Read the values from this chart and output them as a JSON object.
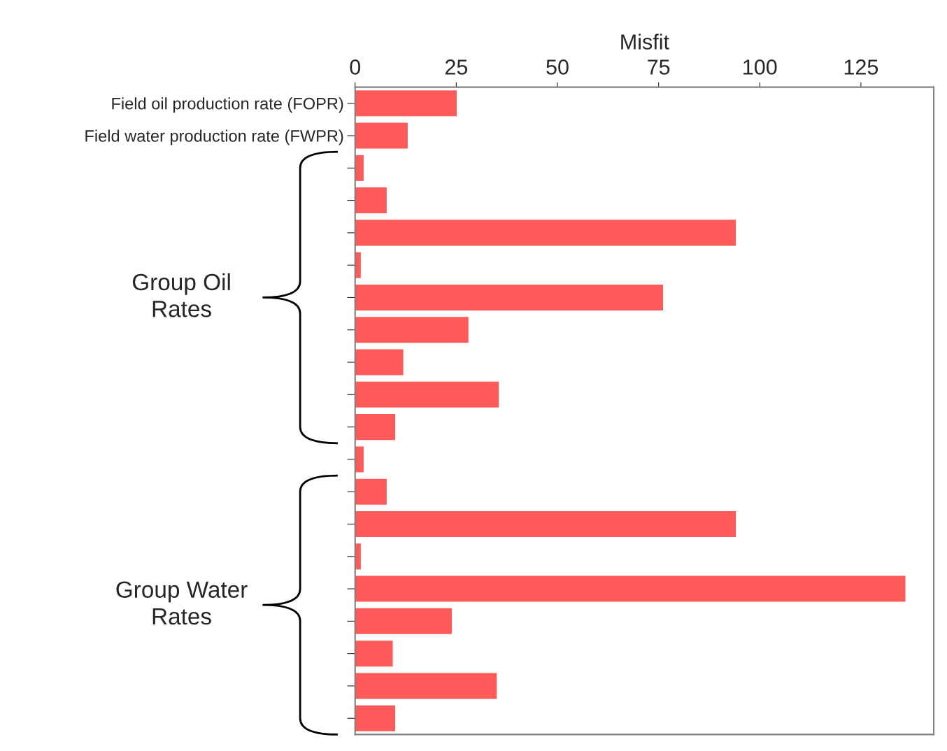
{
  "chart_data": {
    "type": "bar",
    "orientation": "horizontal",
    "xlabel": "Misfit",
    "categories": [
      "Field oil production rate (FOPR)",
      "Field water production rate (FWPR)",
      null,
      null,
      null,
      null,
      null,
      null,
      null,
      null,
      null,
      null,
      null,
      null,
      null,
      null,
      null,
      null,
      null,
      null
    ],
    "values": [
      25.1,
      13.0,
      2.1,
      7.8,
      94.1,
      1.4,
      76.1,
      28.0,
      11.9,
      35.5,
      9.9,
      2.1,
      7.8,
      94.1,
      1.4,
      136,
      23.9,
      9.3,
      35,
      9.9
    ],
    "color": "#ff5a5a",
    "xlim": [
      0,
      143
    ],
    "xticks": [
      0,
      25,
      50,
      75,
      100,
      125
    ],
    "grid": false,
    "annotations": [
      "Group Oil\nRates",
      "Group Water\nRates"
    ]
  }
}
